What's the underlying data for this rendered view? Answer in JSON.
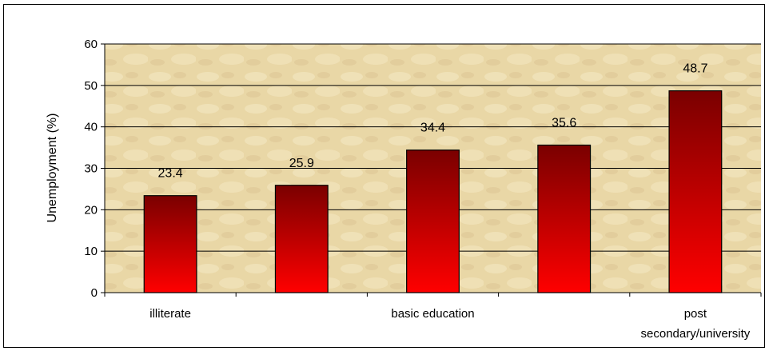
{
  "chart_data": {
    "type": "bar",
    "ylabel": "Unemployment (%)",
    "ylim": [
      0,
      60
    ],
    "yticks": [
      0,
      10,
      20,
      30,
      40,
      50,
      60
    ],
    "grid": true,
    "values": [
      23.4,
      25.9,
      34.4,
      35.6,
      48.7
    ],
    "data_labels": [
      "23.4",
      "25.9",
      "34.4",
      "35.6",
      "48.7"
    ],
    "category_labels": [
      {
        "index": 0,
        "lines": [
          "illiterate"
        ]
      },
      {
        "index": 2,
        "lines": [
          "basic education"
        ]
      },
      {
        "index": 4,
        "lines": [
          "post",
          "secondary/university"
        ]
      }
    ],
    "colors": {
      "bar_top": "#7a0000",
      "bar_bottom": "#ff0000",
      "plot_bg": "#e9d7a6",
      "plot_bg_light": "#f3e6c0",
      "grid": "#000000"
    }
  }
}
